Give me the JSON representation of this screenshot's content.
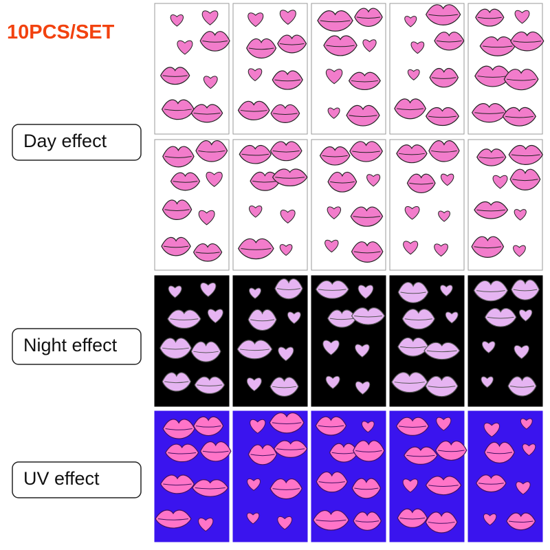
{
  "header": {
    "title": "10PCS/SET"
  },
  "labels": [
    "Day effect",
    "Night effect",
    "UV effect"
  ]
}
